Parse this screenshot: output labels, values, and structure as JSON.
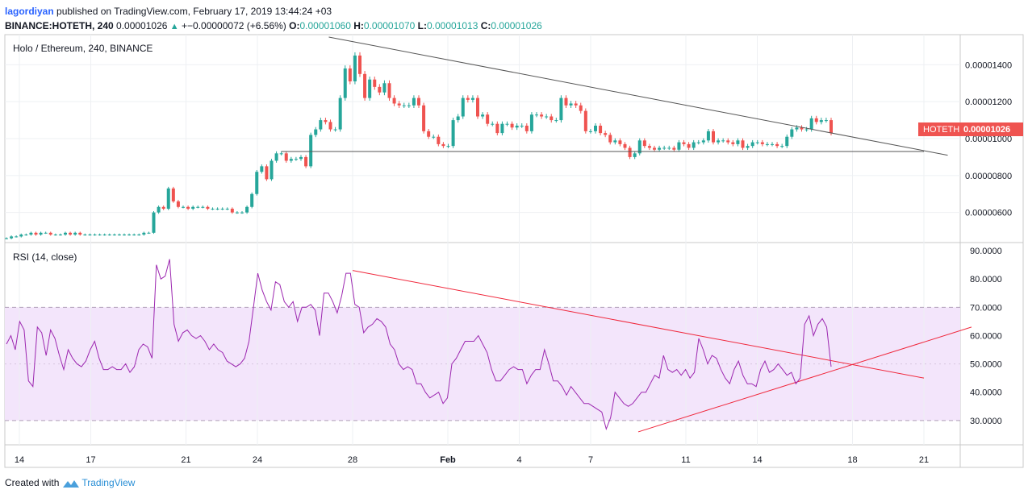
{
  "header": {
    "author": "lagordiyan",
    "published_text": "published on TradingView.com, February 17, 2019 13:44:24 +03",
    "symbol": "BINANCE:HOTETH, 240",
    "price": "0.00001026",
    "change": "+−0.00000072 (+6.56%)",
    "o_label": "O:",
    "o": "0.00001060",
    "h_label": "H:",
    "h": "0.00001070",
    "l_label": "L:",
    "l": "0.00001013",
    "c_label": "C:",
    "c": "0.00001026"
  },
  "footer": {
    "created_with": "Created with",
    "brand": "TradingView",
    "logo_icon": "tradingview-logo-icon"
  },
  "colors": {
    "up": "#26a69a",
    "down": "#ef5350",
    "rsi_line": "#9c27b0",
    "rsi_band": "#f3e5fb",
    "trend_red": "#f0283c",
    "trend_gray": "#555555",
    "price_tag": "#ef5350"
  },
  "chart_data": [
    {
      "type": "candlestick",
      "title": "Holo / Ethereum, 240, BINANCE",
      "symbol_tag": "HOTETH",
      "last_price_tag": "0.00001026",
      "ylim": [
        4.5e-06,
        1.55e-05
      ],
      "y_ticks": [
        "0.00001400",
        "0.00001200",
        "0.00001000",
        "0.00000800",
        "0.00000600"
      ],
      "x_ticks": [
        "14",
        "17",
        "21",
        "24",
        "28",
        "Feb",
        "4",
        "7",
        "11",
        "14",
        "18",
        "21"
      ],
      "candles_note": "approximate 4h closes read from chart, Jan 13 – Feb 17 2019",
      "closes": [
        4.6e-06,
        4.7e-06,
        4.7e-06,
        4.8e-06,
        4.8e-06,
        4.9e-06,
        4.8e-06,
        4.9e-06,
        4.9e-06,
        4.8e-06,
        4.8e-06,
        4.8e-06,
        4.9e-06,
        4.8e-06,
        4.9e-06,
        4.8e-06,
        4.8e-06,
        4.8e-06,
        4.8e-06,
        4.8e-06,
        4.8e-06,
        4.8e-06,
        4.8e-06,
        4.8e-06,
        4.8e-06,
        4.8e-06,
        4.8e-06,
        4.8e-06,
        4.9e-06,
        4.9e-06,
        6e-06,
        6.3e-06,
        6.2e-06,
        7.3e-06,
        6.6e-06,
        6.3e-06,
        6.3e-06,
        6.2e-06,
        6.3e-06,
        6.3e-06,
        6.3e-06,
        6.2e-06,
        6.2e-06,
        6.2e-06,
        6.2e-06,
        6.2e-06,
        6e-06,
        6e-06,
        6e-06,
        6.3e-06,
        7e-06,
        8.2e-06,
        8.5e-06,
        7.8e-06,
        8.8e-06,
        9.2e-06,
        9.2e-06,
        8.8e-06,
        8.9e-06,
        8.9e-06,
        9e-06,
        8.5e-06,
        1.02e-05,
        1.05e-05,
        1.1e-05,
        1.09e-05,
        1.05e-05,
        1.05e-05,
        1.22e-05,
        1.38e-05,
        1.31e-05,
        1.45e-05,
        1.35e-05,
        1.22e-05,
        1.32e-05,
        1.28e-05,
        1.25e-05,
        1.3e-05,
        1.22e-05,
        1.19e-05,
        1.18e-05,
        1.18e-05,
        1.18e-05,
        1.22e-05,
        1.18e-05,
        1.04e-05,
        1.01e-05,
        1.01e-05,
        9.7e-06,
        9.6e-06,
        9.6e-06,
        1.1e-05,
        1.12e-05,
        1.22e-05,
        1.21e-05,
        1.22e-05,
        1.12e-05,
        1.13e-05,
        1.08e-05,
        1.08e-05,
        1.03e-05,
        1.08e-05,
        1.08e-05,
        1.06e-05,
        1.07e-05,
        1.07e-05,
        1.04e-05,
        1.13e-05,
        1.13e-05,
        1.12e-05,
        1.12e-05,
        1.1e-05,
        1.1e-05,
        1.22e-05,
        1.18e-05,
        1.19e-05,
        1.18e-05,
        1.15e-05,
        1.04e-05,
        1.04e-05,
        1.07e-05,
        1.03e-05,
        1.02e-05,
        9.8e-06,
        9.9e-06,
        9.7e-06,
        9.5e-06,
        9e-06,
        9.2e-06,
        9.9e-06,
        9.6e-06,
        9.5e-06,
        9.4e-06,
        9.5e-06,
        9.5e-06,
        9.5e-06,
        9.4e-06,
        9.8e-06,
        9.7e-06,
        9.5e-06,
        9.8e-06,
        9.8e-06,
        9.9e-06,
        1.04e-05,
        9.8e-06,
        9.9e-06,
        9.9e-06,
        9.8e-06,
        9.7e-06,
        9.9e-06,
        9.5e-06,
        9.6e-06,
        9.8e-06,
        9.8e-06,
        9.7e-06,
        9.7e-06,
        9.7e-06,
        9.6e-06,
        9.6e-06,
        1.01e-05,
        1.05e-05,
        1.06e-05,
        1.05e-05,
        1.05e-05,
        1.11e-05,
        1.09e-05,
        1.1e-05,
        1.1e-05,
        1.03e-05
      ],
      "resistance_trendline": {
        "from": [
          "Jan 26",
          1.55e-05
        ],
        "to": [
          "Feb 21",
          9.1e-06
        ]
      },
      "support_line": {
        "from": [
          "Jan 24",
          9.3e-06
        ],
        "to": [
          "Feb 20",
          9.3e-06
        ]
      }
    },
    {
      "type": "line",
      "title": "RSI (14, close)",
      "ylim": [
        22,
        92
      ],
      "y_ticks": [
        "90.0000",
        "80.0000",
        "70.0000",
        "60.0000",
        "50.0000",
        "40.0000",
        "30.0000"
      ],
      "band": [
        30,
        70
      ],
      "values": [
        57,
        60,
        55,
        65,
        62,
        44,
        42,
        63,
        61,
        53,
        62,
        59,
        53,
        48,
        55,
        52,
        50,
        49,
        51,
        55,
        58,
        52,
        48,
        48,
        49,
        48,
        48,
        50,
        47,
        49,
        55,
        57,
        56,
        52,
        85,
        80,
        81,
        87,
        64,
        58,
        61,
        62,
        60,
        59,
        60,
        58,
        55,
        57,
        55,
        54,
        51,
        50,
        49,
        50,
        52,
        58,
        70,
        82,
        76,
        72,
        69,
        79,
        78,
        72,
        70,
        72,
        65,
        70,
        70,
        71,
        69,
        60,
        75,
        75,
        72,
        68,
        74,
        82,
        82,
        71,
        70,
        61,
        63,
        64,
        66,
        65,
        63,
        57,
        55,
        50,
        48,
        49,
        48,
        43,
        43,
        40,
        38,
        39,
        40,
        36,
        38,
        50,
        52,
        55,
        58,
        58,
        58,
        60,
        57,
        54,
        48,
        44,
        44,
        46,
        48,
        49,
        48,
        48,
        43,
        46,
        48,
        48,
        55,
        50,
        44,
        44,
        42,
        39,
        42,
        40,
        38,
        36,
        36,
        35,
        34,
        33,
        27,
        31,
        40,
        38,
        36,
        35,
        36,
        38,
        40,
        40,
        43,
        46,
        45,
        53,
        48,
        47,
        48,
        46,
        48,
        45,
        47,
        59,
        55,
        50,
        53,
        52,
        48,
        45,
        43,
        48,
        51,
        46,
        43,
        43,
        42,
        48,
        51,
        47,
        48,
        50,
        48,
        46,
        47,
        43,
        45,
        64,
        67,
        60,
        64,
        66,
        63,
        49
      ],
      "resistance_trendline": {
        "from": [
          "Jan 27",
          83
        ],
        "to": [
          "Feb 20",
          45
        ]
      },
      "support_trendline": {
        "from": [
          "Feb 8",
          26
        ],
        "to": [
          "Feb 22",
          63
        ]
      }
    }
  ]
}
